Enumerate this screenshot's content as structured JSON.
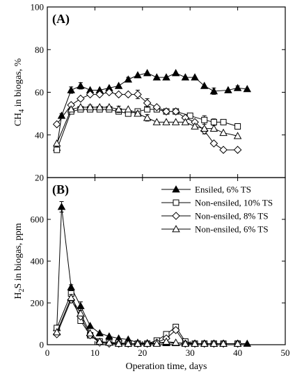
{
  "chart_data": [
    {
      "type": "line",
      "panel_label": "(A)",
      "ylabel_main": "CH",
      "ylabel_sub": "4",
      "ylabel_rest": " in biogas, %",
      "xlim": [
        0,
        50
      ],
      "ylim": [
        20,
        100
      ],
      "xticks": [
        "0",
        "10",
        "20",
        "30",
        "40",
        "50"
      ],
      "yticks": [
        "20",
        "40",
        "60",
        "80",
        "100"
      ],
      "series": [
        {
          "name": "Ensiled, 6% TS",
          "marker": "triangle-filled",
          "x": [
            2,
            3,
            5,
            7,
            9,
            11,
            13,
            15,
            17,
            19,
            21,
            23,
            25,
            27,
            29,
            31,
            33,
            35,
            38,
            40,
            42
          ],
          "y": [
            34,
            49,
            61,
            63,
            61,
            61,
            62,
            63,
            66,
            68,
            69,
            67,
            67,
            69,
            67,
            67,
            63,
            60.5,
            61,
            62,
            61.5
          ],
          "err": [
            0,
            1,
            1.5,
            1.5,
            0,
            0,
            0,
            0,
            1,
            0,
            0,
            0,
            0,
            0,
            0,
            0,
            0,
            1.5,
            0,
            1,
            0
          ]
        },
        {
          "name": "Non-ensiled, 10% TS",
          "marker": "square-open",
          "x": [
            2,
            5,
            7,
            9,
            11,
            13,
            15,
            17,
            19,
            21,
            23,
            25,
            27,
            30,
            33,
            35,
            37,
            40
          ],
          "y": [
            33,
            51,
            52,
            52,
            52,
            52,
            51,
            50,
            51,
            52,
            52,
            51,
            51,
            49,
            47,
            46,
            46,
            44
          ],
          "err": [
            0,
            0,
            0,
            0,
            0,
            0,
            0,
            0,
            0,
            0,
            0,
            0,
            1,
            0,
            2,
            1.5,
            0,
            0
          ]
        },
        {
          "name": "Non-ensiled, 8% TS",
          "marker": "diamond-open",
          "x": [
            2,
            5,
            7,
            9,
            11,
            13,
            15,
            17,
            19,
            21,
            23,
            25,
            27,
            29,
            31,
            33,
            35,
            37,
            40
          ],
          "y": [
            45,
            54,
            57,
            59,
            59,
            60,
            59,
            59,
            59,
            55,
            53,
            51,
            51,
            48,
            46,
            42,
            36,
            33,
            33
          ],
          "err": [
            0,
            0,
            0,
            0,
            0,
            0,
            0,
            0,
            2,
            2,
            0,
            0,
            0,
            0,
            0,
            1.5,
            0,
            0,
            0
          ]
        },
        {
          "name": "Non-ensiled, 6% TS",
          "marker": "triangle-open",
          "x": [
            2,
            5,
            7,
            9,
            11,
            13,
            15,
            17,
            19,
            21,
            23,
            25,
            27,
            29,
            31,
            33,
            35,
            37,
            40
          ],
          "y": [
            36,
            52,
            53,
            53,
            53,
            53,
            52,
            52,
            50,
            48,
            46,
            46,
            46,
            46,
            44,
            43,
            43,
            41,
            39.5
          ],
          "err": [
            0,
            0,
            0,
            1,
            0,
            0,
            1.5,
            0,
            1,
            1.5,
            0,
            0,
            0,
            0,
            0,
            0,
            0,
            0,
            0
          ]
        }
      ]
    },
    {
      "type": "line",
      "panel_label": "(B)",
      "ylabel_main": "H",
      "ylabel_sub": "2",
      "ylabel_rest": "S in biogas, ppm",
      "xlabel": "Operation time, days",
      "xlim": [
        0,
        50
      ],
      "ylim": [
        0,
        800
      ],
      "xticks": [
        "0",
        "10",
        "20",
        "30",
        "40",
        "50"
      ],
      "yticks": [
        "0",
        "200",
        "400",
        "600"
      ],
      "legend": "top-right",
      "series": [
        {
          "name": "Ensiled, 6% TS",
          "marker": "triangle-filled",
          "x": [
            2,
            3,
            5,
            7,
            9,
            11,
            13,
            15,
            17,
            19,
            21,
            23,
            25,
            27,
            29,
            31,
            33,
            35,
            37,
            40,
            42
          ],
          "y": [
            80,
            660,
            275,
            185,
            90,
            55,
            40,
            30,
            25,
            10,
            8,
            8,
            8,
            8,
            8,
            5,
            5,
            5,
            5,
            5,
            5
          ],
          "err": [
            0,
            25,
            12,
            20,
            0,
            0,
            0,
            0,
            0,
            0,
            0,
            0,
            0,
            0,
            0,
            0,
            0,
            0,
            0,
            0,
            0
          ]
        },
        {
          "name": "Non-ensiled, 10% TS",
          "marker": "square-open",
          "x": [
            2,
            5,
            7,
            9,
            11,
            13,
            15,
            17,
            19,
            21,
            23,
            25,
            27,
            29,
            31,
            33,
            35,
            37,
            40
          ],
          "y": [
            80,
            245,
            115,
            45,
            15,
            10,
            10,
            5,
            5,
            5,
            20,
            50,
            85,
            15,
            5,
            5,
            5,
            5,
            5
          ],
          "err": [
            0,
            10,
            0,
            0,
            0,
            0,
            0,
            0,
            0,
            0,
            0,
            0,
            10,
            0,
            0,
            0,
            0,
            0,
            0
          ]
        },
        {
          "name": "Non-ensiled, 8% TS",
          "marker": "diamond-open",
          "x": [
            2,
            5,
            7,
            9,
            11,
            13,
            15,
            17,
            19,
            21,
            23,
            25,
            27,
            29,
            31,
            33,
            35,
            37,
            40
          ],
          "y": [
            50,
            215,
            135,
            45,
            10,
            5,
            5,
            5,
            5,
            5,
            10,
            30,
            70,
            5,
            5,
            5,
            5,
            5,
            5
          ],
          "err": [
            0,
            12,
            0,
            0,
            0,
            0,
            0,
            0,
            0,
            0,
            0,
            0,
            10,
            0,
            0,
            0,
            0,
            0,
            0
          ]
        },
        {
          "name": "Non-ensiled, 6% TS",
          "marker": "triangle-open",
          "x": [
            2,
            5,
            7,
            9,
            11,
            13,
            15,
            17,
            19,
            21,
            23,
            25,
            27,
            29,
            31,
            33,
            35,
            37,
            40
          ],
          "y": [
            60,
            225,
            150,
            55,
            15,
            10,
            5,
            5,
            5,
            5,
            5,
            15,
            10,
            5,
            5,
            5,
            5,
            5,
            5
          ],
          "err": [
            0,
            15,
            0,
            0,
            0,
            0,
            0,
            0,
            0,
            0,
            0,
            0,
            0,
            0,
            0,
            0,
            0,
            0,
            0
          ]
        }
      ]
    }
  ]
}
